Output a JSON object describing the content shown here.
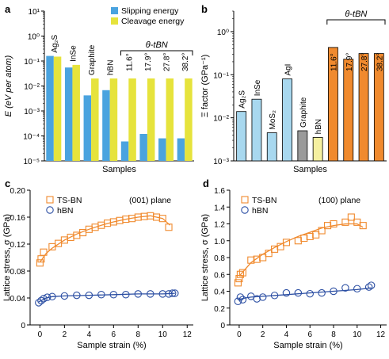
{
  "chart_data": [
    {
      "panel": "a",
      "type": "bar",
      "yscale": "log",
      "ylabel": "E (eV per atom)",
      "xlabel": "Samples",
      "ylim": [
        1e-05,
        10
      ],
      "ytick_labels": [
        "10⁻⁵",
        "10⁻⁴",
        "10⁻³",
        "10⁻²",
        "10⁻¹",
        "10⁰",
        "10¹"
      ],
      "categories": [
        "Ag₂S",
        "InSe",
        "Graphite",
        "hBN",
        "11.6°",
        "17.9°",
        "27.8°",
        "38.2°"
      ],
      "group_label": "θ-tBN",
      "legend_position": "top-right",
      "colors": {
        "Slipping energy": "#4aa3df",
        "Cleavage energy": "#e6e33c"
      },
      "series": [
        {
          "name": "Slipping energy",
          "values": [
            0.16,
            0.055,
            0.0042,
            0.0068,
            6e-05,
            0.00012,
            8e-05,
            8e-05
          ]
        },
        {
          "name": "Cleavage energy",
          "values": [
            0.15,
            0.07,
            0.02,
            0.02,
            0.02,
            0.02,
            0.02,
            0.02
          ]
        }
      ]
    },
    {
      "panel": "b",
      "type": "bar",
      "yscale": "log",
      "ylabel": "Ξ factor (GPa⁻¹)",
      "xlabel": "Samples",
      "ylim": [
        0.001,
        3
      ],
      "ytick_labels": [
        "10⁻³",
        "10⁻²",
        "10⁻¹",
        "10⁰"
      ],
      "categories": [
        "Ag₂S",
        "InSe",
        "MoS₂",
        "AgI",
        "Graphite",
        "hBN",
        "11.6°",
        "17.9°",
        "27.8°",
        "38.2°"
      ],
      "group_label": "θ-tBN",
      "values": [
        0.014,
        0.027,
        0.0045,
        0.08,
        0.005,
        0.0035,
        0.43,
        0.23,
        0.31,
        0.31
      ],
      "colors": [
        "#a8d8ef",
        "#a8d8ef",
        "#a8d8ef",
        "#a8d8ef",
        "#9a9a9a",
        "#f5f0a0",
        "#f08a2e",
        "#f08a2e",
        "#f08a2e",
        "#f08a2e"
      ]
    },
    {
      "panel": "c",
      "type": "scatter",
      "annotation": "(001) plane",
      "xlabel": "Sample strain (%)",
      "ylabel": "Lattice stress, σ (GPa)",
      "xlim": [
        -0.8,
        12.5
      ],
      "ylim": [
        0,
        0.2
      ],
      "xticks": [
        0,
        2,
        4,
        6,
        8,
        10,
        12
      ],
      "yticks": [
        0,
        0.04,
        0.08,
        0.12,
        0.16,
        0.2
      ],
      "ytick_labels": [
        "0",
        "0.04",
        "0.08",
        "0.12",
        "0.16",
        "0.20"
      ],
      "legend_position": "top-left",
      "series": [
        {
          "name": "TS-BN",
          "marker": "square",
          "color": "#f08a2e",
          "x": [
            0,
            0.1,
            0.3,
            1.0,
            1.5,
            2.0,
            2.5,
            3.0,
            3.5,
            4.0,
            4.5,
            5.0,
            5.5,
            6.0,
            6.5,
            7.0,
            7.5,
            8.0,
            8.5,
            9.0,
            9.5,
            10.0,
            10.5
          ],
          "y": [
            0.092,
            0.098,
            0.108,
            0.116,
            0.121,
            0.126,
            0.13,
            0.133,
            0.137,
            0.142,
            0.145,
            0.148,
            0.151,
            0.153,
            0.155,
            0.157,
            0.158,
            0.16,
            0.161,
            0.162,
            0.16,
            0.158,
            0.145
          ],
          "fit": {
            "x": [
              0,
              0.5,
              1,
              2,
              3,
              4,
              5,
              6,
              7,
              8,
              9,
              10,
              10.6
            ],
            "y": [
              0.093,
              0.106,
              0.114,
              0.126,
              0.135,
              0.142,
              0.148,
              0.153,
              0.157,
              0.16,
              0.162,
              0.158,
              0.148
            ]
          }
        },
        {
          "name": "hBN",
          "marker": "circle",
          "color": "#2c4fa3",
          "x": [
            -0.1,
            0.1,
            0.3,
            0.6,
            1.0,
            2.0,
            3.0,
            4.0,
            5.0,
            6.0,
            7.0,
            8.0,
            9.0,
            10.0,
            10.5,
            10.8,
            11.0
          ],
          "y": [
            0.033,
            0.036,
            0.039,
            0.041,
            0.042,
            0.043,
            0.044,
            0.044,
            0.045,
            0.045,
            0.045,
            0.046,
            0.046,
            0.046,
            0.046,
            0.047,
            0.047
          ],
          "fit": {
            "x": [
              -0.1,
              0.5,
              1,
              2,
              4,
              6,
              8,
              10,
              11
            ],
            "y": [
              0.034,
              0.04,
              0.042,
              0.043,
              0.044,
              0.045,
              0.046,
              0.046,
              0.047
            ]
          }
        }
      ]
    },
    {
      "panel": "d",
      "type": "scatter",
      "annotation": "(100) plane",
      "xlabel": "Sample strain (%)",
      "ylabel": "Lattice stress, σ (GPa)",
      "xlim": [
        -0.8,
        12.5
      ],
      "ylim": [
        0,
        1.6
      ],
      "xticks": [
        0,
        2,
        4,
        6,
        8,
        10,
        12
      ],
      "yticks": [
        0,
        0.2,
        0.4,
        0.6,
        0.8,
        1.0,
        1.2,
        1.4,
        1.6
      ],
      "ytick_labels": [
        "0",
        "0.2",
        "0.4",
        "0.6",
        "0.8",
        "1.0",
        "1.2",
        "1.4",
        "1.6"
      ],
      "legend_position": "top-left",
      "series": [
        {
          "name": "TS-BN",
          "marker": "square",
          "color": "#f08a2e",
          "x": [
            -0.1,
            0,
            0.1,
            0.3,
            1.0,
            1.5,
            2.0,
            2.5,
            3.0,
            3.5,
            4.0,
            5.0,
            5.5,
            6.0,
            6.5,
            7.0,
            7.5,
            8.0,
            9.0,
            9.5,
            10.0,
            10.5
          ],
          "y": [
            0.5,
            0.55,
            0.6,
            0.62,
            0.77,
            0.78,
            0.8,
            0.85,
            0.9,
            0.93,
            0.98,
            1.0,
            1.03,
            1.05,
            1.07,
            1.12,
            1.18,
            1.2,
            1.22,
            1.28,
            1.22,
            1.18
          ],
          "fit": {
            "x": [
              0,
              1,
              2,
              3,
              4,
              5,
              6,
              7,
              8,
              9,
              10,
              10.5
            ],
            "y": [
              0.58,
              0.74,
              0.84,
              0.92,
              0.99,
              1.05,
              1.1,
              1.15,
              1.18,
              1.2,
              1.2,
              1.16
            ]
          }
        },
        {
          "name": "hBN",
          "marker": "circle",
          "color": "#2c4fa3",
          "x": [
            -0.1,
            0.1,
            0.3,
            1.0,
            1.5,
            2.0,
            3.0,
            4.0,
            5.0,
            6.0,
            7.0,
            8.0,
            9.0,
            10.0,
            11.0,
            11.2
          ],
          "y": [
            0.28,
            0.33,
            0.3,
            0.34,
            0.31,
            0.33,
            0.35,
            0.38,
            0.38,
            0.37,
            0.38,
            0.4,
            0.44,
            0.43,
            0.45,
            0.47
          ],
          "fit": {
            "x": [
              -0.1,
              0.5,
              1,
              2,
              4,
              6,
              8,
              10,
              11.2
            ],
            "y": [
              0.3,
              0.32,
              0.33,
              0.34,
              0.36,
              0.38,
              0.4,
              0.42,
              0.44
            ]
          }
        }
      ]
    }
  ]
}
